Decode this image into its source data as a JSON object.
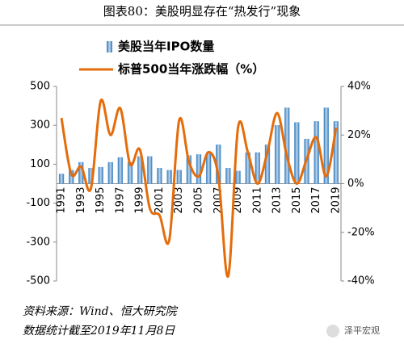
{
  "chart_data": {
    "type": "bar_line",
    "title": "图表80：美股明显存在“热发行”现象",
    "categories": [
      "1991",
      null,
      "1993",
      null,
      "1995",
      null,
      "1997",
      null,
      "1999",
      null,
      "2001",
      null,
      "2003",
      null,
      "2005",
      null,
      "2007",
      null,
      "2009",
      null,
      "2011",
      null,
      "2013",
      null,
      "2015",
      null,
      "2017",
      null,
      "2019"
    ],
    "series": [
      {
        "name": "美股当年IPO数量",
        "type": "bar",
        "color": "#5b9bd5",
        "axis": "y",
        "values": [
          50,
          70,
          110,
          80,
          85,
          110,
          135,
          110,
          140,
          140,
          80,
          70,
          70,
          145,
          150,
          160,
          200,
          80,
          65,
          160,
          160,
          200,
          300,
          390,
          315,
          230,
          320,
          390,
          320
        ]
      },
      {
        "name": "标普500当年涨跌幅（%）",
        "type": "line",
        "color": "#e46c0a",
        "axis": "y2",
        "values": [
          27,
          4,
          7,
          -2,
          34,
          20,
          31,
          8,
          14,
          -10,
          -13,
          -23,
          26,
          9,
          3,
          13,
          3,
          -38,
          23,
          13,
          0,
          13,
          29,
          11,
          0,
          10,
          19,
          3,
          23
        ]
      }
    ],
    "ylim": [
      -500,
      500
    ],
    "yticks": [
      -500,
      -300,
      -100,
      100,
      300,
      500
    ],
    "y2lim": [
      -40,
      40
    ],
    "y2ticks": [
      {
        "value": -40,
        "label": "-40%"
      },
      {
        "value": -20,
        "label": "-20%"
      },
      {
        "value": 0,
        "label": "0%"
      },
      {
        "value": 20,
        "label": "20%"
      },
      {
        "value": 40,
        "label": "40%"
      }
    ],
    "source": "资料来源：Wind、恒大研究院",
    "note": "数据统计截至2019年11月8日",
    "watermark": "泽平宏观"
  }
}
